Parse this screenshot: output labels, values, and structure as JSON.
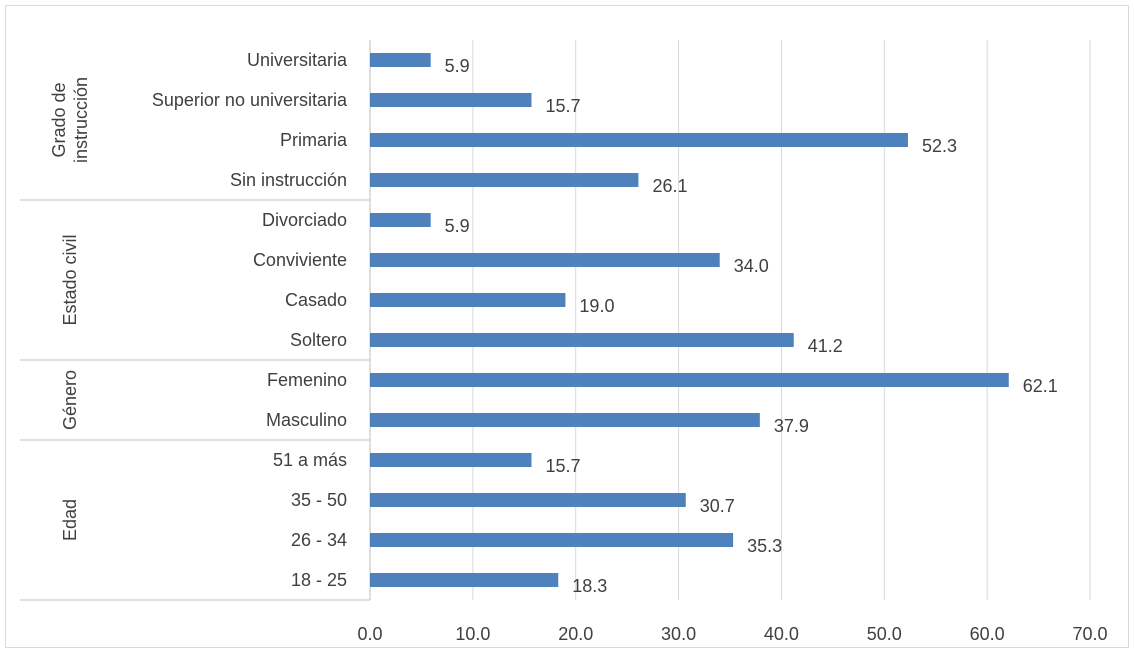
{
  "chart_data": {
    "type": "bar",
    "orientation": "horizontal",
    "title": "",
    "xlabel": "",
    "ylabel": "",
    "xlim": [
      0,
      70
    ],
    "ticks": [
      "0.0",
      "10.0",
      "20.0",
      "30.0",
      "40.0",
      "50.0",
      "60.0",
      "70.0"
    ],
    "tick_values": [
      0,
      10,
      20,
      30,
      40,
      50,
      60,
      70
    ],
    "grid": true,
    "legend": "none",
    "bar_color": "#4f81bd",
    "groups": [
      {
        "name": "Grado de instrucción",
        "name_lines": [
          "Grado de",
          "instrucción"
        ],
        "categories": [
          "Universitaria",
          "Superior no universitaria",
          "Primaria",
          "Sin instrucción"
        ],
        "values": [
          5.9,
          15.7,
          52.3,
          26.1
        ],
        "value_labels": [
          "5.9",
          "15.7",
          "52.3",
          "26.1"
        ]
      },
      {
        "name": "Estado civil",
        "name_lines": [
          "Estado civil"
        ],
        "categories": [
          "Divorciado",
          "Conviviente",
          "Casado",
          "Soltero"
        ],
        "values": [
          5.9,
          34.0,
          19.0,
          41.2
        ],
        "value_labels": [
          "5.9",
          "34.0",
          "19.0",
          "41.2"
        ]
      },
      {
        "name": "Género",
        "name_lines": [
          "Género"
        ],
        "categories": [
          "Femenino",
          "Masculino"
        ],
        "values": [
          62.1,
          37.9
        ],
        "value_labels": [
          "62.1",
          "37.9"
        ]
      },
      {
        "name": "Edad",
        "name_lines": [
          "Edad"
        ],
        "categories": [
          "51 a más",
          "35 - 50",
          "26 - 34",
          "18 - 25"
        ],
        "values": [
          15.7,
          30.7,
          35.3,
          18.3
        ],
        "value_labels": [
          "15.7",
          "30.7",
          "35.3",
          "18.3"
        ]
      }
    ]
  }
}
